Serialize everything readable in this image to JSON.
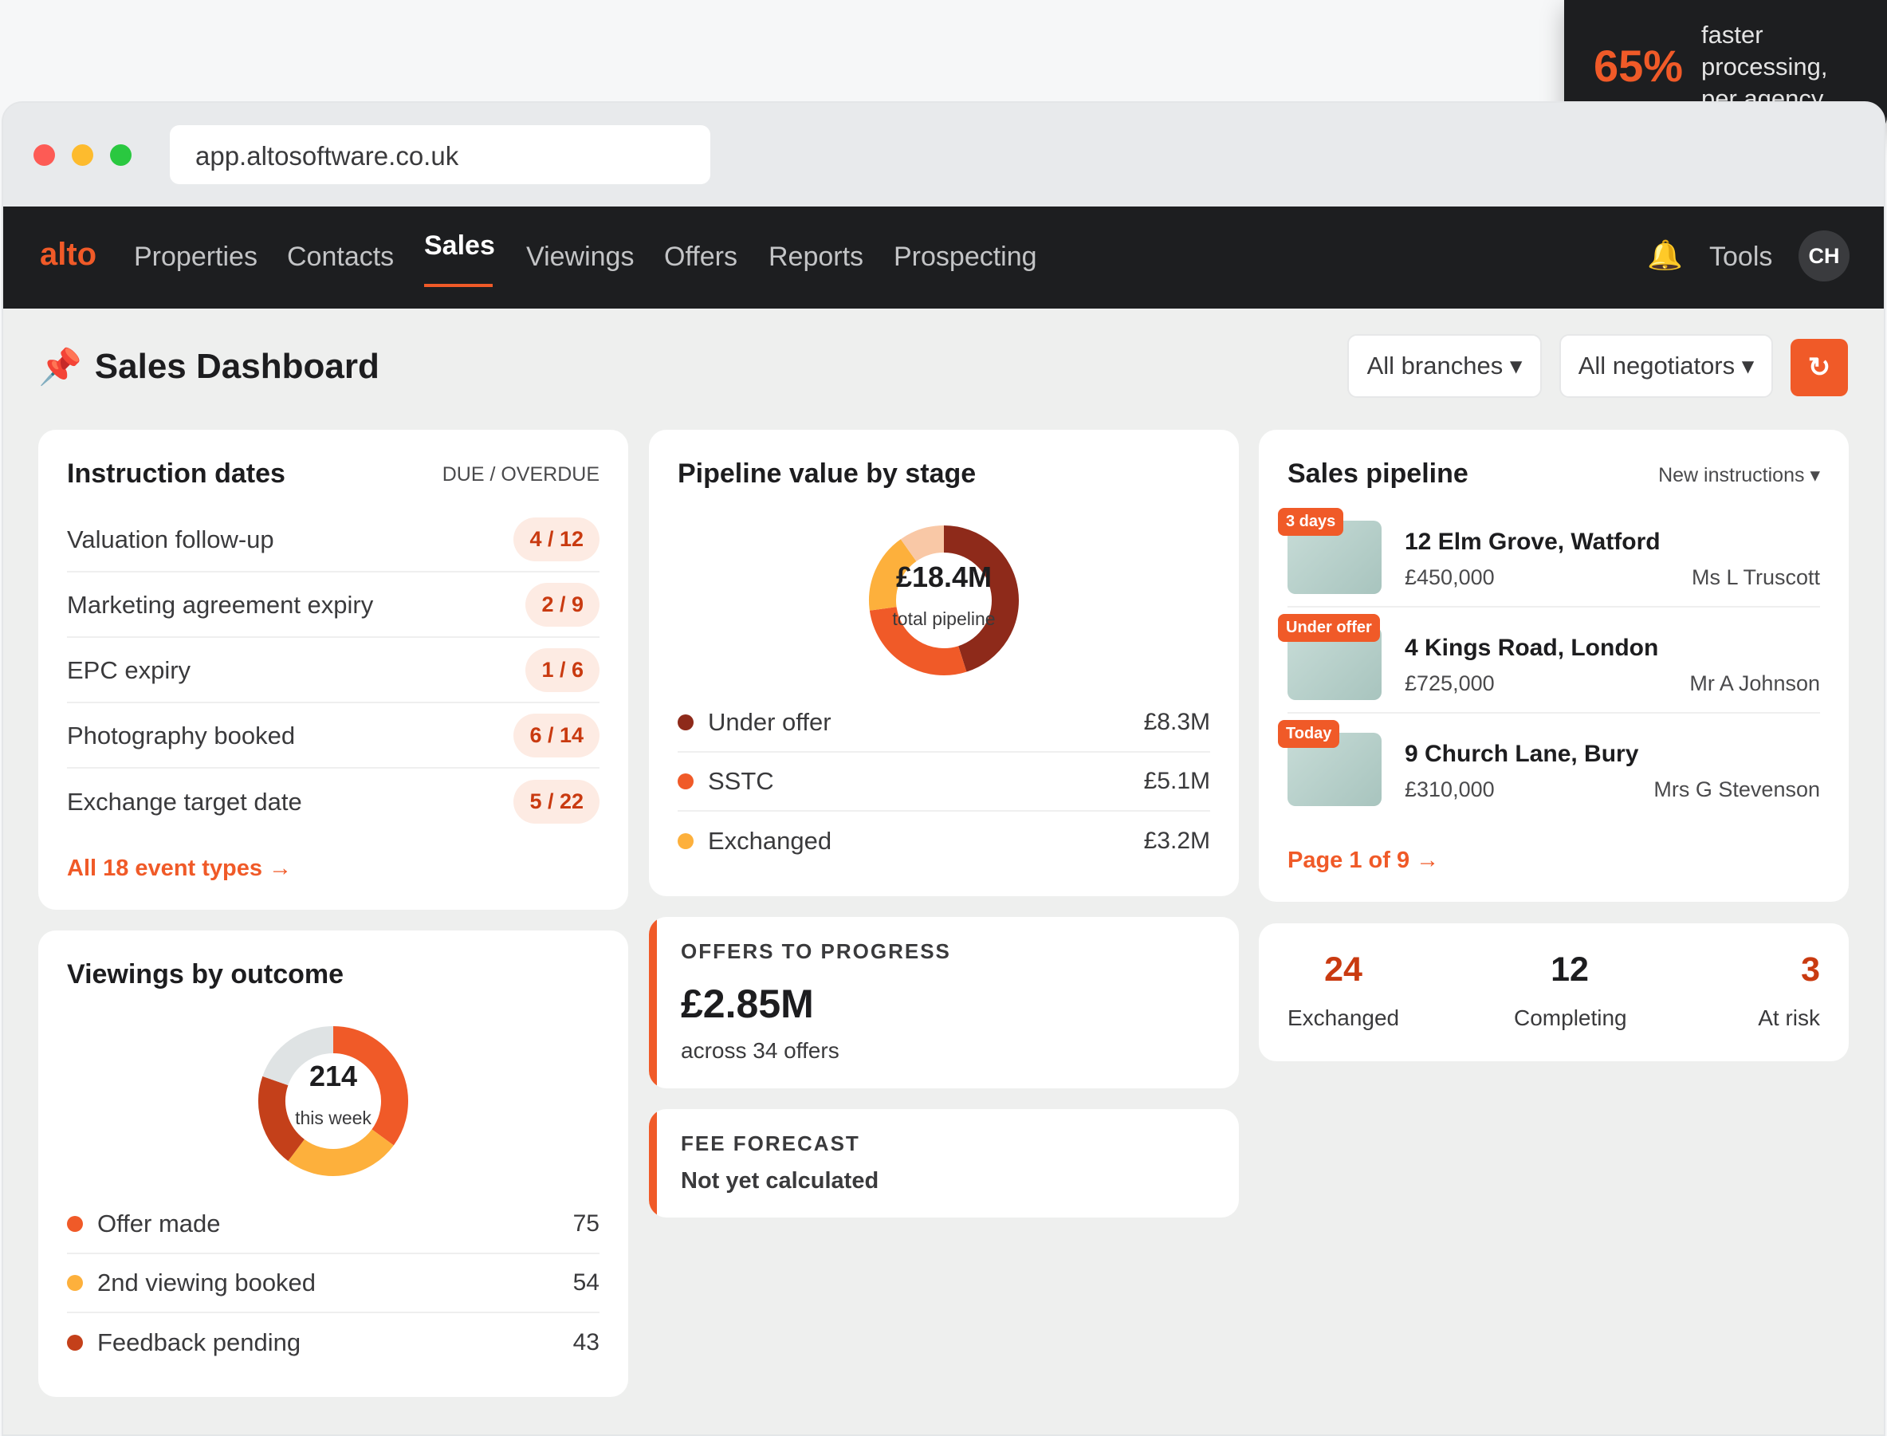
{
  "badge": {
    "value": "65%",
    "line1": "faster",
    "line2": "processing,",
    "line3": "per agency"
  },
  "browser": {
    "url": "app.altosoftware.co.uk"
  },
  "nav": {
    "logo": "alto",
    "items": [
      "Properties",
      "Contacts",
      "Sales",
      "Viewings",
      "Offers",
      "Reports",
      "Prospecting"
    ],
    "active": "Sales",
    "tools": "Tools",
    "avatar": "CH"
  },
  "page": {
    "title": "Sales Dashboard",
    "title_icon": "pushpin-icon",
    "filter_branches": "All branches ▾",
    "filter_negotiators": "All negotiators ▾",
    "refresh": "↻"
  },
  "instruction_dates": {
    "title": "Instruction dates",
    "subtitle": "DUE / OVERDUE",
    "rows": [
      {
        "label": "Valuation follow-up",
        "value": "4 / 12"
      },
      {
        "label": "Marketing agreement expiry",
        "value": "2 / 9"
      },
      {
        "label": "EPC expiry",
        "value": "1 / 6"
      },
      {
        "label": "Photography booked",
        "value": "6 / 14"
      },
      {
        "label": "Exchange target date",
        "value": "5 / 22"
      }
    ],
    "link": "All 18 event types →"
  },
  "pipeline_value": {
    "title": "Pipeline value by stage",
    "center_value": "£18.4M",
    "center_label": "total pipeline",
    "legend": [
      {
        "label": "Under offer",
        "value": "£8.3M",
        "color": "#8e2a1a"
      },
      {
        "label": "SSTC",
        "value": "£5.1M",
        "color": "#f05a28"
      },
      {
        "label": "Exchanged",
        "value": "£3.2M",
        "color": "#fdb03c"
      }
    ]
  },
  "sales_pipeline": {
    "title": "Sales pipeline",
    "filter": "New instructions ▾",
    "items": [
      {
        "tag": "3 days",
        "address": "12 Elm Grove, Watford",
        "price": "£450,000",
        "negotiator": "Ms L Truscott"
      },
      {
        "tag": "Under offer",
        "address": "4 Kings Road, London",
        "price": "£725,000",
        "negotiator": "Mr A Johnson"
      },
      {
        "tag": "Today",
        "address": "9 Church Lane, Bury",
        "price": "£310,000",
        "negotiator": "Mrs G Stevenson"
      }
    ],
    "link": "Page 1 of 9 →"
  },
  "viewings": {
    "title": "Viewings by outcome",
    "center_value": "214",
    "center_label": "this week",
    "legend": [
      {
        "label": "Offer made",
        "value": "75",
        "color": "#f05a28"
      },
      {
        "label": "2nd viewing booked",
        "value": "54",
        "color": "#fdb03c"
      },
      {
        "label": "Feedback pending",
        "value": "43",
        "color": "#c4401a"
      }
    ]
  },
  "offers": {
    "title": "OFFERS TO PROGRESS",
    "value": "£2.85M",
    "sub": "across 34 offers"
  },
  "fee": {
    "title": "FEE FORECAST",
    "value": "Not yet calculated"
  },
  "stats": [
    {
      "value": "24",
      "label": "Exchanged",
      "color": "#c93a10"
    },
    {
      "value": "12",
      "label": "Completing",
      "color": "#1d1d1f"
    },
    {
      "value": "3",
      "label": "At risk",
      "color": "#c93a10"
    }
  ]
}
